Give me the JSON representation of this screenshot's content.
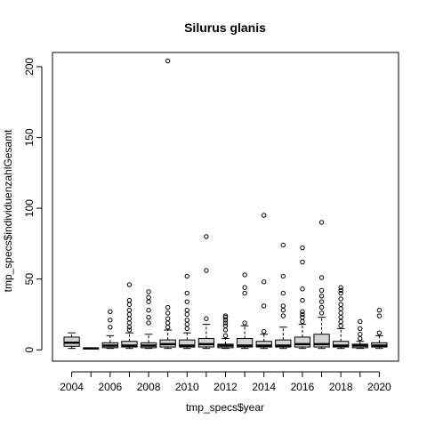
{
  "chart_data": {
    "type": "boxplot",
    "title": "Silurus glanis",
    "xlabel": "tmp_specs$year",
    "ylabel": "tmp_specs$individuenzahlGesamt",
    "ylim": [
      -8,
      210
    ],
    "yticks": [
      0,
      50,
      100,
      150,
      200
    ],
    "categories": [
      "2004",
      "2005",
      "2006",
      "2007",
      "2008",
      "2009",
      "2010",
      "2011",
      "2012",
      "2013",
      "2014",
      "2015",
      "2016",
      "2017",
      "2018",
      "2019",
      "2020"
    ],
    "xtick_labels_shown": [
      "2004",
      "2006",
      "2008",
      "2010",
      "2012",
      "2014",
      "2016",
      "2018",
      "2020"
    ],
    "box_fill": "#d3d3d3",
    "boxes": [
      {
        "year": "2004",
        "lower_whisker": 1,
        "q1": 2.5,
        "median": 5,
        "q3": 9,
        "upper_whisker": 12,
        "outliers": []
      },
      {
        "year": "2005",
        "lower_whisker": 1,
        "q1": 1,
        "median": 1,
        "q3": 1,
        "upper_whisker": 1,
        "outliers": []
      },
      {
        "year": "2006",
        "lower_whisker": 1,
        "q1": 1.5,
        "median": 3,
        "q3": 5,
        "upper_whisker": 10,
        "outliers": [
          16,
          21,
          27
        ]
      },
      {
        "year": "2007",
        "lower_whisker": 1,
        "q1": 2,
        "median": 3,
        "q3": 6,
        "upper_whisker": 12,
        "outliers": [
          14,
          16,
          19,
          22,
          25,
          28,
          32,
          35,
          46
        ]
      },
      {
        "year": "2008",
        "lower_whisker": 1,
        "q1": 1.5,
        "median": 3,
        "q3": 5,
        "upper_whisker": 11,
        "outliers": [
          19,
          23,
          28,
          34,
          37,
          41
        ]
      },
      {
        "year": "2009",
        "lower_whisker": 1,
        "q1": 2,
        "median": 4,
        "q3": 7,
        "upper_whisker": 14,
        "outliers": [
          16,
          19,
          22,
          26,
          30,
          204
        ]
      },
      {
        "year": "2010",
        "lower_whisker": 1,
        "q1": 2,
        "median": 3,
        "q3": 7,
        "upper_whisker": 12,
        "outliers": [
          15,
          18,
          21,
          25,
          28,
          34,
          40,
          52
        ]
      },
      {
        "year": "2011",
        "lower_whisker": 1,
        "q1": 2,
        "median": 4,
        "q3": 8,
        "upper_whisker": 18,
        "outliers": [
          22,
          56,
          80
        ]
      },
      {
        "year": "2012",
        "lower_whisker": 1,
        "q1": 1.5,
        "median": 3,
        "q3": 4,
        "upper_whisker": 8,
        "outliers": [
          10,
          14,
          17,
          19,
          21,
          23,
          24
        ]
      },
      {
        "year": "2013",
        "lower_whisker": 1,
        "q1": 2,
        "median": 3,
        "q3": 8,
        "upper_whisker": 17,
        "outliers": [
          19,
          40,
          44,
          53
        ]
      },
      {
        "year": "2014",
        "lower_whisker": 1,
        "q1": 2,
        "median": 3,
        "q3": 6,
        "upper_whisker": 11,
        "outliers": [
          13,
          31,
          48,
          95
        ]
      },
      {
        "year": "2015",
        "lower_whisker": 1,
        "q1": 2,
        "median": 3,
        "q3": 7,
        "upper_whisker": 16,
        "outliers": [
          24,
          28,
          31,
          40,
          52,
          74
        ]
      },
      {
        "year": "2016",
        "lower_whisker": 1,
        "q1": 2,
        "median": 4,
        "q3": 9,
        "upper_whisker": 18,
        "outliers": [
          20,
          23,
          25,
          27,
          35,
          43,
          62,
          72
        ]
      },
      {
        "year": "2017",
        "lower_whisker": 1,
        "q1": 2,
        "median": 4,
        "q3": 11,
        "upper_whisker": 23,
        "outliers": [
          26,
          30,
          34,
          38,
          42,
          51,
          90
        ]
      },
      {
        "year": "2018",
        "lower_whisker": 1,
        "q1": 2,
        "median": 3,
        "q3": 6,
        "upper_whisker": 15,
        "outliers": [
          17,
          20,
          23,
          26,
          29,
          32,
          36,
          40,
          42,
          44
        ]
      },
      {
        "year": "2019",
        "lower_whisker": 1,
        "q1": 1.5,
        "median": 3,
        "q3": 4,
        "upper_whisker": 6,
        "outliers": [
          8,
          11,
          15,
          20
        ]
      },
      {
        "year": "2020",
        "lower_whisker": 1,
        "q1": 2,
        "median": 3,
        "q3": 5,
        "upper_whisker": 10,
        "outliers": [
          12,
          24,
          28
        ]
      }
    ]
  }
}
